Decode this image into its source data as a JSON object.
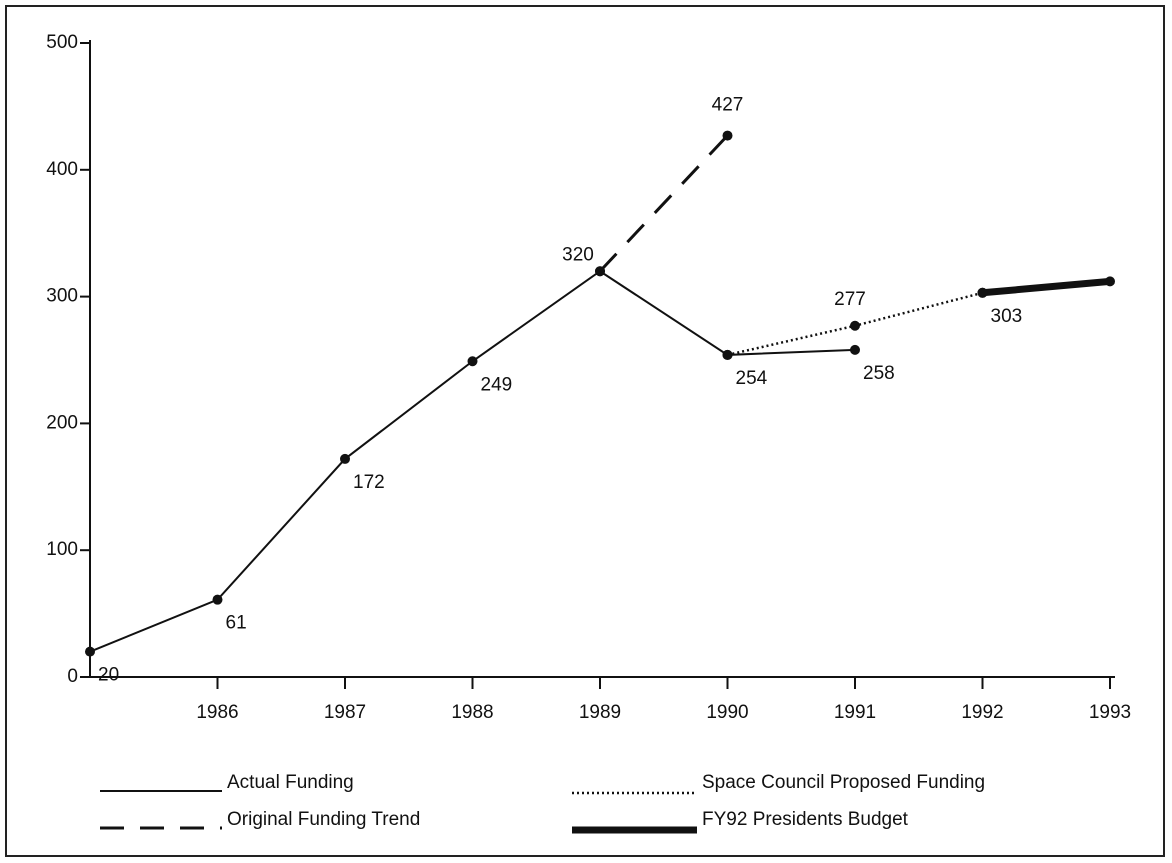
{
  "chart_data": {
    "type": "line",
    "categories": [
      null,
      "1986",
      "1987",
      "1988",
      "1989",
      "1990",
      "1991",
      "1992",
      "1993"
    ],
    "ylim": [
      0,
      500
    ],
    "yticks": [
      0,
      100,
      200,
      300,
      400,
      500
    ],
    "series": [
      {
        "name": "Actual Funding",
        "color": "#111111",
        "line_style": "solid",
        "data_labels": true,
        "values": [
          20,
          61,
          172,
          249,
          320,
          254,
          258,
          null,
          null
        ]
      },
      {
        "name": "Original Funding Trend",
        "color": "#111111",
        "line_style": "dashed",
        "data_labels": true,
        "values": [
          null,
          null,
          null,
          null,
          320,
          427,
          null,
          null,
          null
        ]
      },
      {
        "name": "Space Council Proposed Funding",
        "color": "#111111",
        "line_style": "dotted",
        "data_labels": true,
        "values": [
          null,
          null,
          null,
          null,
          null,
          254,
          277,
          303,
          null
        ]
      },
      {
        "name": "FY92 Presidents Budget",
        "color": "#111111",
        "line_style": "thick",
        "data_labels": false,
        "values": [
          null,
          null,
          null,
          null,
          null,
          null,
          null,
          303,
          312
        ]
      }
    ]
  }
}
